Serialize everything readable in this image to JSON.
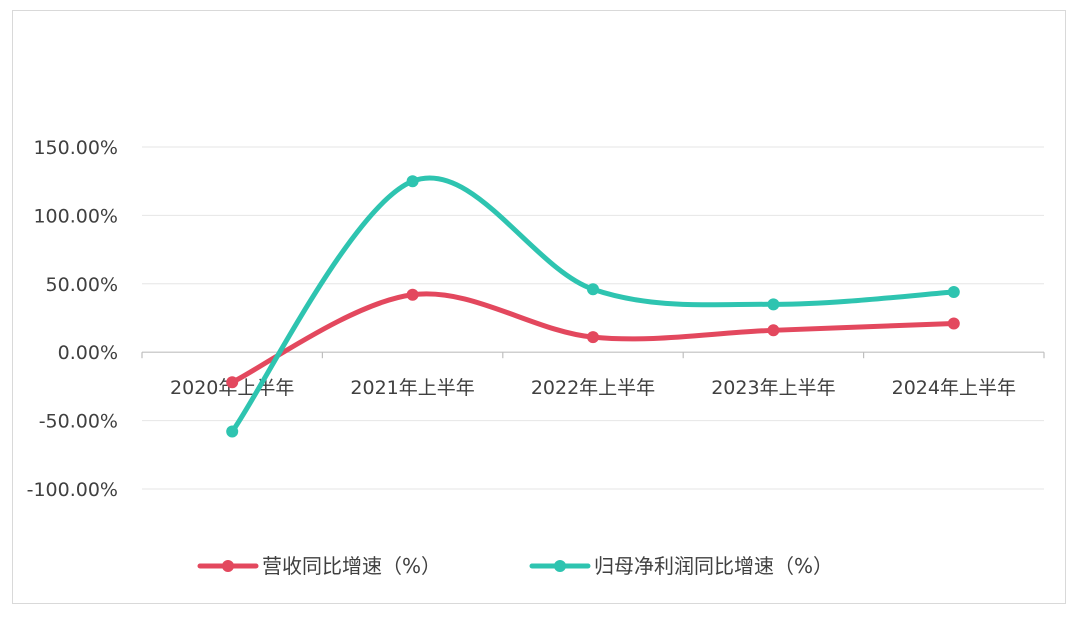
{
  "chart_data": {
    "type": "line",
    "title": "",
    "xlabel": "",
    "ylabel": "",
    "categories": [
      "2020年上半年",
      "2021年上半年",
      "2022年上半年",
      "2023年上半年",
      "2024年上半年"
    ],
    "series": [
      {
        "name": "营收同比增速（%）",
        "color": "#e3485e",
        "values": [
          -22,
          42,
          11,
          16,
          21
        ]
      },
      {
        "name": "归母净利润同比增速（%）",
        "color": "#2ec4b0",
        "values": [
          -58,
          125,
          46,
          35,
          44
        ]
      }
    ],
    "ylim": [
      -100,
      150
    ],
    "yticks": [
      "-100.00%",
      "-50.00%",
      "0.00%",
      "50.00%",
      "100.00%",
      "150.00%"
    ],
    "grid": true,
    "smooth": true,
    "legend_position": "bottom"
  }
}
